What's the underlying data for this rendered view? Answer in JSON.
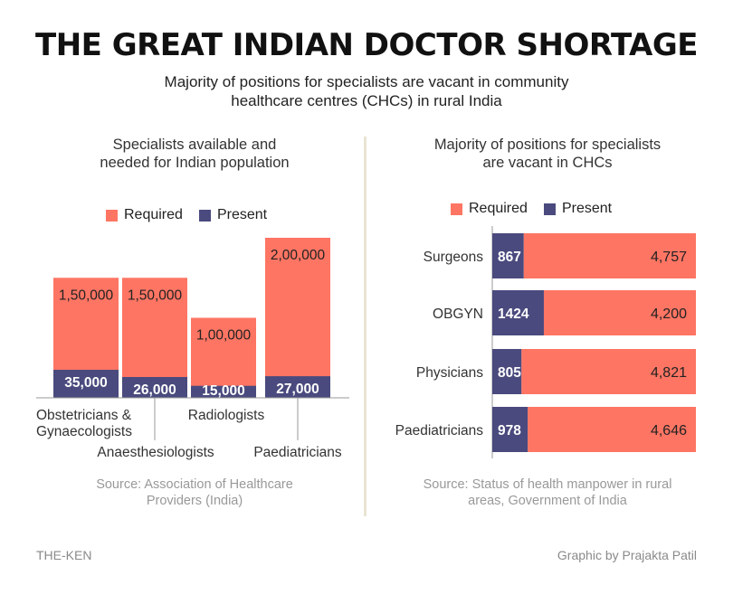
{
  "header": {
    "title": "THE GREAT INDIAN DOCTOR SHORTAGE",
    "subtitle_line1": "Majority of positions for specialists are vacant in community",
    "subtitle_line2": "healthcare centres (CHCs) in rural India"
  },
  "colors": {
    "required": "#fe7563",
    "present": "#4a4a7e",
    "divider": "#e9e5d4",
    "axis": "#999999"
  },
  "legend": {
    "required_label": "Required",
    "present_label": "Present"
  },
  "footer": {
    "brand": "THE-KEN",
    "credit": "Graphic by Prajakta Patil"
  },
  "chart_data": [
    {
      "type": "bar",
      "orientation": "vertical",
      "title_line1": "Specialists available and",
      "title_line2": "needed for Indian population",
      "categories": [
        "Obstetricians & Gynaecologists",
        "Anaesthesiologists",
        "Radiologists",
        "Paediatricians"
      ],
      "category_label_lines": [
        [
          "Obstetricians &",
          "Gynaecologists"
        ],
        [
          "Anaesthesiologists"
        ],
        [
          "Radiologists"
        ],
        [
          "Paediatricians"
        ]
      ],
      "series": [
        {
          "name": "Required",
          "values": [
            150000,
            150000,
            100000,
            200000
          ],
          "labels": [
            "1,50,000",
            "1,50,000",
            "1,00,000",
            "2,00,000"
          ]
        },
        {
          "name": "Present",
          "values": [
            35000,
            26000,
            15000,
            27000
          ],
          "labels": [
            "35,000",
            "26,000",
            "15,000",
            "27,000"
          ]
        }
      ],
      "legend": "top-center",
      "grid": false,
      "source_line1": "Source: Association of Healthcare",
      "source_line2": "Providers (India)"
    },
    {
      "type": "bar",
      "orientation": "horizontal",
      "stacked": true,
      "title_line1": "Majority of positions for specialists",
      "title_line2": "are vacant in CHCs",
      "categories": [
        "Surgeons",
        "OBGYN",
        "Physicians",
        "Paediatricians"
      ],
      "series": [
        {
          "name": "Present",
          "values": [
            867,
            1424,
            805,
            978
          ],
          "labels": [
            "867",
            "1424",
            "805",
            "978"
          ]
        },
        {
          "name": "Required",
          "values": [
            4757,
            4200,
            4821,
            4646
          ],
          "labels": [
            "4,757",
            "4,200",
            "4,821",
            "4,646"
          ]
        }
      ],
      "legend": "top-center",
      "grid": false,
      "source_line1": "Source: Status of health manpower in rural",
      "source_line2": "areas, Government of India"
    }
  ]
}
